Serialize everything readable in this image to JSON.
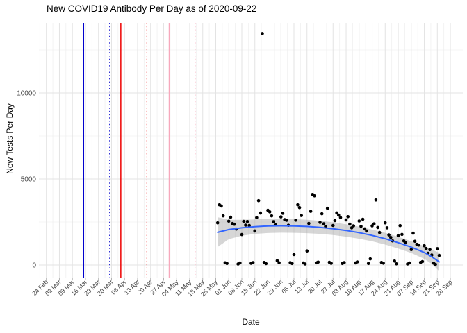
{
  "chart_data": {
    "type": "scatter",
    "title": "New COVID19 Antibody Per Day as of 2020-09-22",
    "xlabel": "Date",
    "ylabel": "New Tests Per Day",
    "grid": true,
    "legend": "none",
    "x_axis": {
      "start_date": "2020-02-24",
      "tick_interval_days": 7,
      "tick_labels": [
        "24 Feb",
        "02 Mar",
        "09 Mar",
        "16 Mar",
        "23 Mar",
        "30 Mar",
        "06 Apr",
        "13 Apr",
        "20 Apr",
        "27 Apr",
        "04 May",
        "11 May",
        "18 May",
        "25 May",
        "01 Jun",
        "08 Jun",
        "15 Jun",
        "22 Jun",
        "29 Jun",
        "06 Jul",
        "13 Jul",
        "20 Jul",
        "27 Jul",
        "03 Aug",
        "10 Aug",
        "17 Aug",
        "24 Aug",
        "31 Aug",
        "07 Sep",
        "14 Sep",
        "21 Sep",
        "28 Sep"
      ]
    },
    "y_axis": {
      "ticks": [
        0,
        5000,
        10000
      ],
      "minor_ticks": [
        2500,
        7500,
        12500
      ],
      "ylim": [
        -900,
        14000
      ]
    },
    "colors": {
      "point": "#000000",
      "smooth_line": "#3366FF",
      "confidence_band": "#9e9e9e",
      "grid_major": "#e3e3e3",
      "grid_minor": "#f0f0f0",
      "tick_text": "#444444",
      "event_blue": "#0000CD",
      "event_red": "#EE0000",
      "event_pink": "#F7A8BC",
      "event_pink_light": "#FBC3D2"
    },
    "event_lines": [
      {
        "date": "2020-03-15",
        "color": "#0000CD",
        "style": "solid"
      },
      {
        "date": "2020-03-29",
        "color": "#0000CD",
        "style": "dotted"
      },
      {
        "date": "2020-04-04",
        "color": "#EE0000",
        "style": "solid"
      },
      {
        "date": "2020-04-18",
        "color": "#EE0000",
        "style": "dotted"
      },
      {
        "date": "2020-04-30",
        "color": "#F7A8BC",
        "style": "solid"
      },
      {
        "date": "2020-05-14",
        "color": "#FBC3D2",
        "style": "dotted"
      }
    ],
    "points": [
      [
        "2020-05-26",
        2450
      ],
      [
        "2020-05-27",
        3500
      ],
      [
        "2020-05-28",
        3430
      ],
      [
        "2020-05-29",
        2860
      ],
      [
        "2020-05-30",
        130
      ],
      [
        "2020-05-31",
        90
      ],
      [
        "2020-06-01",
        2550
      ],
      [
        "2020-06-02",
        2780
      ],
      [
        "2020-06-03",
        2410
      ],
      [
        "2020-06-04",
        2370
      ],
      [
        "2020-06-05",
        2090
      ],
      [
        "2020-06-06",
        60
      ],
      [
        "2020-06-07",
        120
      ],
      [
        "2020-06-08",
        1770
      ],
      [
        "2020-06-09",
        2540
      ],
      [
        "2020-06-10",
        2320
      ],
      [
        "2020-06-11",
        2530
      ],
      [
        "2020-06-12",
        2300
      ],
      [
        "2020-06-13",
        100
      ],
      [
        "2020-06-14",
        140
      ],
      [
        "2020-06-15",
        1980
      ],
      [
        "2020-06-16",
        2760
      ],
      [
        "2020-06-17",
        3740
      ],
      [
        "2020-06-18",
        3020
      ],
      [
        "2020-06-19",
        13450
      ],
      [
        "2020-06-20",
        150
      ],
      [
        "2020-06-21",
        80
      ],
      [
        "2020-06-22",
        3180
      ],
      [
        "2020-06-23",
        3090
      ],
      [
        "2020-06-24",
        2860
      ],
      [
        "2020-06-25",
        2520
      ],
      [
        "2020-06-26",
        2350
      ],
      [
        "2020-06-27",
        250
      ],
      [
        "2020-06-28",
        130
      ],
      [
        "2020-06-29",
        2800
      ],
      [
        "2020-06-30",
        3010
      ],
      [
        "2020-07-01",
        2640
      ],
      [
        "2020-07-02",
        2600
      ],
      [
        "2020-07-03",
        2310
      ],
      [
        "2020-07-04",
        140
      ],
      [
        "2020-07-05",
        90
      ],
      [
        "2020-07-06",
        610
      ],
      [
        "2020-07-07",
        2610
      ],
      [
        "2020-07-08",
        3500
      ],
      [
        "2020-07-09",
        3340
      ],
      [
        "2020-07-10",
        2880
      ],
      [
        "2020-07-11",
        120
      ],
      [
        "2020-07-12",
        60
      ],
      [
        "2020-07-13",
        820
      ],
      [
        "2020-07-14",
        2420
      ],
      [
        "2020-07-15",
        3120
      ],
      [
        "2020-07-16",
        4100
      ],
      [
        "2020-07-17",
        4020
      ],
      [
        "2020-07-18",
        130
      ],
      [
        "2020-07-19",
        170
      ],
      [
        "2020-07-20",
        2480
      ],
      [
        "2020-07-21",
        2980
      ],
      [
        "2020-07-22",
        2400
      ],
      [
        "2020-07-23",
        2240
      ],
      [
        "2020-07-24",
        3300
      ],
      [
        "2020-07-25",
        160
      ],
      [
        "2020-07-26",
        100
      ],
      [
        "2020-07-27",
        2300
      ],
      [
        "2020-07-28",
        2580
      ],
      [
        "2020-07-29",
        3030
      ],
      [
        "2020-07-30",
        2900
      ],
      [
        "2020-07-31",
        2760
      ],
      [
        "2020-08-01",
        90
      ],
      [
        "2020-08-02",
        140
      ],
      [
        "2020-08-03",
        2620
      ],
      [
        "2020-08-04",
        2810
      ],
      [
        "2020-08-05",
        2380
      ],
      [
        "2020-08-06",
        2160
      ],
      [
        "2020-08-07",
        2280
      ],
      [
        "2020-08-08",
        120
      ],
      [
        "2020-08-09",
        180
      ],
      [
        "2020-08-10",
        2560
      ],
      [
        "2020-08-11",
        2250
      ],
      [
        "2020-08-12",
        2660
      ],
      [
        "2020-08-13",
        2100
      ],
      [
        "2020-08-14",
        1980
      ],
      [
        "2020-08-15",
        90
      ],
      [
        "2020-08-16",
        360
      ],
      [
        "2020-08-17",
        2280
      ],
      [
        "2020-08-18",
        2390
      ],
      [
        "2020-08-19",
        3780
      ],
      [
        "2020-08-20",
        2180
      ],
      [
        "2020-08-21",
        1890
      ],
      [
        "2020-08-22",
        150
      ],
      [
        "2020-08-23",
        110
      ],
      [
        "2020-08-24",
        2450
      ],
      [
        "2020-08-25",
        2160
      ],
      [
        "2020-08-26",
        1750
      ],
      [
        "2020-08-27",
        1600
      ],
      [
        "2020-08-28",
        1400
      ],
      [
        "2020-08-29",
        230
      ],
      [
        "2020-08-30",
        70
      ],
      [
        "2020-08-31",
        1700
      ],
      [
        "2020-09-01",
        2290
      ],
      [
        "2020-09-02",
        1780
      ],
      [
        "2020-09-03",
        1400
      ],
      [
        "2020-09-04",
        1300
      ],
      [
        "2020-09-05",
        60
      ],
      [
        "2020-09-06",
        120
      ],
      [
        "2020-09-07",
        900
      ],
      [
        "2020-09-08",
        1850
      ],
      [
        "2020-09-09",
        1380
      ],
      [
        "2020-09-10",
        1200
      ],
      [
        "2020-09-11",
        1160
      ],
      [
        "2020-09-12",
        150
      ],
      [
        "2020-09-13",
        200
      ],
      [
        "2020-09-14",
        1120
      ],
      [
        "2020-09-15",
        960
      ],
      [
        "2020-09-16",
        680
      ],
      [
        "2020-09-17",
        900
      ],
      [
        "2020-09-18",
        580
      ],
      [
        "2020-09-19",
        110
      ],
      [
        "2020-09-20",
        40
      ],
      [
        "2020-09-21",
        950
      ],
      [
        "2020-09-22",
        560
      ]
    ],
    "smooth": [
      [
        "2020-05-26",
        1900,
        1050,
        2780
      ],
      [
        "2020-06-01",
        2060,
        1500,
        2630
      ],
      [
        "2020-06-08",
        2160,
        1700,
        2630
      ],
      [
        "2020-06-15",
        2230,
        1810,
        2650
      ],
      [
        "2020-06-22",
        2270,
        1860,
        2680
      ],
      [
        "2020-06-29",
        2280,
        1880,
        2680
      ],
      [
        "2020-07-06",
        2270,
        1870,
        2670
      ],
      [
        "2020-07-13",
        2240,
        1850,
        2630
      ],
      [
        "2020-07-20",
        2190,
        1810,
        2570
      ],
      [
        "2020-07-27",
        2110,
        1740,
        2480
      ],
      [
        "2020-08-03",
        2010,
        1650,
        2370
      ],
      [
        "2020-08-10",
        1880,
        1530,
        2230
      ],
      [
        "2020-08-17",
        1720,
        1380,
        2060
      ],
      [
        "2020-08-24",
        1530,
        1190,
        1870
      ],
      [
        "2020-08-31",
        1300,
        960,
        1640
      ],
      [
        "2020-09-07",
        1040,
        700,
        1380
      ],
      [
        "2020-09-14",
        730,
        360,
        1100
      ],
      [
        "2020-09-18",
        480,
        60,
        900
      ],
      [
        "2020-09-22",
        180,
        -350,
        710
      ]
    ]
  }
}
